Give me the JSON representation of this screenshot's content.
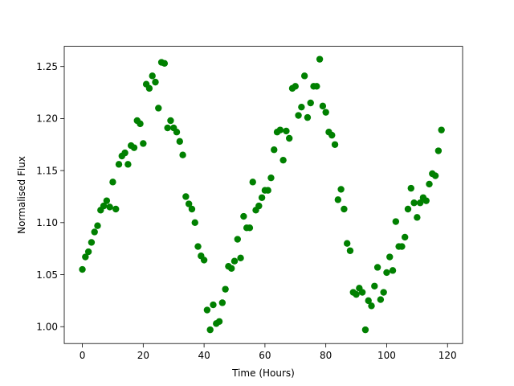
{
  "chart_data": {
    "type": "scatter",
    "xlabel": "Time (Hours)",
    "ylabel": "Normalised Flux",
    "color": "#008000",
    "x": [
      0,
      1,
      2,
      3,
      4,
      5,
      6,
      7,
      8,
      9,
      10,
      11,
      12,
      13,
      14,
      15,
      16,
      17,
      18,
      19,
      20,
      21,
      22,
      23,
      24,
      25,
      26,
      27,
      28,
      29,
      30,
      31,
      32,
      33,
      34,
      35,
      36,
      37,
      38,
      39,
      40,
      41,
      42,
      43,
      44,
      45,
      46,
      47,
      48,
      49,
      50,
      51,
      52,
      53,
      54,
      55,
      56,
      57,
      58,
      59,
      60,
      61,
      62,
      63,
      64,
      65,
      66,
      67,
      68,
      69,
      70,
      71,
      72,
      73,
      74,
      75,
      76,
      77,
      78,
      79,
      80,
      81,
      82,
      83,
      84,
      85,
      86,
      87,
      88,
      89,
      90,
      91,
      92,
      93,
      94,
      95,
      96,
      97,
      98,
      99,
      100,
      101,
      102,
      103,
      104,
      105,
      106,
      107,
      108,
      109,
      110,
      111,
      112,
      113,
      114,
      115,
      116,
      117,
      118
    ],
    "values": [
      1.055,
      1.067,
      1.072,
      1.081,
      1.091,
      1.097,
      1.112,
      1.116,
      1.121,
      1.115,
      1.139,
      1.113,
      1.156,
      1.164,
      1.167,
      1.156,
      1.174,
      1.172,
      1.198,
      1.195,
      1.176,
      1.233,
      1.229,
      1.241,
      1.235,
      1.21,
      1.254,
      1.253,
      1.191,
      1.198,
      1.191,
      1.187,
      1.178,
      1.165,
      1.125,
      1.118,
      1.113,
      1.1,
      1.077,
      1.068,
      1.064,
      1.016,
      0.997,
      1.021,
      1.003,
      1.005,
      1.023,
      1.036,
      1.058,
      1.056,
      1.063,
      1.084,
      1.066,
      1.106,
      1.095,
      1.095,
      1.139,
      1.112,
      1.116,
      1.124,
      1.131,
      1.131,
      1.143,
      1.17,
      1.187,
      1.189,
      1.16,
      1.188,
      1.181,
      1.229,
      1.231,
      1.203,
      1.211,
      1.241,
      1.201,
      1.215,
      1.231,
      1.231,
      1.257,
      1.212,
      1.206,
      1.187,
      1.184,
      1.175,
      1.122,
      1.132,
      1.113,
      1.08,
      1.073,
      1.033,
      1.031,
      1.037,
      1.033,
      0.997,
      1.025,
      1.02,
      1.039,
      1.057,
      1.026,
      1.033,
      1.052,
      1.067,
      1.054,
      1.101,
      1.077,
      1.077,
      1.086,
      1.113,
      1.133,
      1.119,
      1.105,
      1.119,
      1.124,
      1.121,
      1.137,
      1.147,
      1.145,
      1.169,
      1.189
    ],
    "xlim": [
      -5.95,
      124.95
    ],
    "xticks": [
      0,
      20,
      40,
      60,
      80,
      100,
      120
    ],
    "ylim": [
      0.9838,
      1.2694
    ],
    "yticks": [
      {
        "value": 1.0,
        "label": "1.00"
      },
      {
        "value": 1.05,
        "label": "1.05"
      },
      {
        "value": 1.1,
        "label": "1.10"
      },
      {
        "value": 1.15,
        "label": "1.15"
      },
      {
        "value": 1.2,
        "label": "1.20"
      },
      {
        "value": 1.25,
        "label": "1.25"
      }
    ],
    "grid": false
  }
}
